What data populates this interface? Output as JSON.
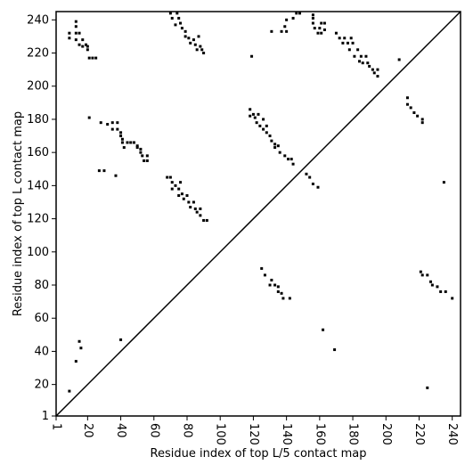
{
  "chart_data": {
    "type": "scatter",
    "xlabel": "Residue index of top L/5 contact map",
    "ylabel": "Residue index of top L contact map",
    "xlim": [
      1,
      245
    ],
    "ylim": [
      1,
      245
    ],
    "xticks": [
      1,
      20,
      40,
      60,
      80,
      100,
      120,
      140,
      160,
      180,
      200,
      220,
      240
    ],
    "yticks": [
      1,
      20,
      40,
      60,
      80,
      100,
      120,
      140,
      160,
      180,
      200,
      220,
      240
    ],
    "color": "#000000",
    "x": [
      9,
      9,
      13,
      13,
      13,
      13,
      15,
      15,
      17,
      17,
      19,
      20,
      21,
      23,
      25,
      20,
      21,
      28,
      32,
      35,
      35,
      38,
      38,
      40,
      40,
      41,
      41,
      42,
      44,
      46,
      48,
      50,
      50,
      52,
      52,
      53,
      54,
      56,
      56,
      27,
      30,
      37,
      68,
      70,
      71,
      71,
      73,
      75,
      75,
      76,
      77,
      78,
      80,
      81,
      82,
      84,
      85,
      86,
      88,
      88,
      90,
      92,
      70,
      71,
      73,
      74,
      75,
      76,
      77,
      79,
      79,
      81,
      82,
      84,
      85,
      86,
      87,
      88,
      89,
      90,
      119,
      118,
      118,
      120,
      121,
      122,
      123,
      124,
      126,
      126,
      128,
      128,
      130,
      131,
      133,
      133,
      135,
      136,
      139,
      141,
      143,
      144,
      152,
      154,
      156,
      159,
      131,
      137,
      139,
      140,
      140,
      144,
      146,
      148,
      156,
      156,
      156,
      157,
      159,
      160,
      161,
      161,
      163,
      163,
      170,
      172,
      174,
      175,
      177,
      178,
      179,
      180,
      181,
      183,
      184,
      185,
      186,
      188,
      189,
      190,
      192,
      193,
      195,
      195,
      208,
      213,
      213,
      215,
      217,
      219,
      222,
      222,
      235,
      9,
      13,
      15,
      16,
      40,
      125,
      127,
      130,
      131,
      133,
      135,
      135,
      137,
      138,
      142,
      162,
      169,
      221,
      222,
      225,
      227,
      228,
      231,
      233,
      236,
      240,
      225
    ],
    "values": [
      232,
      229,
      239,
      236,
      232,
      228,
      232,
      225,
      228,
      224,
      225,
      222,
      217,
      217,
      217,
      224,
      181,
      178,
      177,
      174,
      178,
      174,
      178,
      172,
      170,
      168,
      166,
      163,
      166,
      166,
      166,
      164,
      163,
      162,
      160,
      158,
      155,
      155,
      158,
      149,
      149,
      146,
      145,
      145,
      142,
      138,
      140,
      138,
      134,
      142,
      135,
      132,
      134,
      130,
      127,
      130,
      126,
      124,
      126,
      122,
      119,
      119,
      244,
      241,
      237,
      244,
      241,
      238,
      235,
      233,
      230,
      229,
      226,
      228,
      225,
      222,
      230,
      224,
      222,
      220,
      218,
      186,
      182,
      183,
      181,
      178,
      183,
      176,
      180,
      174,
      172,
      176,
      170,
      167,
      165,
      163,
      164,
      160,
      158,
      156,
      156,
      153,
      147,
      145,
      141,
      139,
      233,
      233,
      236,
      233,
      240,
      241,
      244,
      244,
      238,
      241,
      243,
      235,
      232,
      235,
      238,
      232,
      238,
      234,
      232,
      229,
      226,
      229,
      226,
      222,
      229,
      226,
      218,
      222,
      215,
      218,
      214,
      218,
      214,
      212,
      210,
      208,
      210,
      206,
      216,
      193,
      189,
      187,
      184,
      182,
      180,
      178,
      142,
      16,
      34,
      46,
      42,
      47,
      90,
      86,
      80,
      83,
      80,
      79,
      76,
      75,
      72,
      72,
      53,
      41,
      88,
      86,
      86,
      82,
      80,
      79,
      76,
      76,
      72,
      18
    ]
  }
}
